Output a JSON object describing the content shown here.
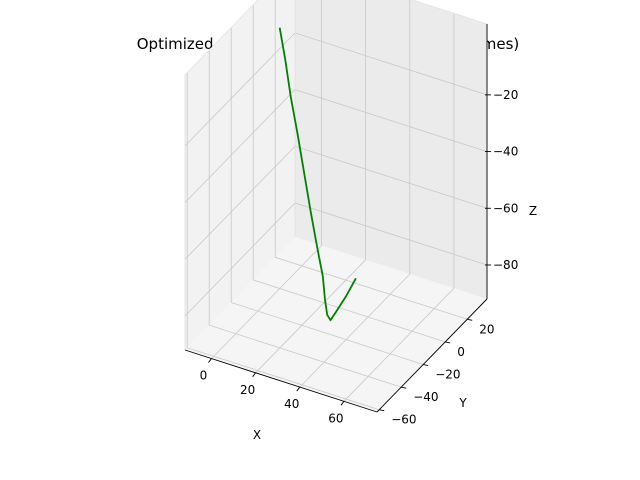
{
  "chart_data": {
    "type": "line",
    "projection": "3d",
    "title": "Optimized Smoothed Trajectory (Visual Keyframes)",
    "xlabel": "X",
    "ylabel": "Y",
    "zlabel": "Z",
    "xlim": [
      -12,
      75
    ],
    "ylim": [
      -62,
      38
    ],
    "zlim": [
      -92,
      5
    ],
    "xticks": [
      0,
      20,
      40,
      60
    ],
    "yticks": [
      -60,
      -40,
      -20,
      0,
      20
    ],
    "zticks": [
      -80,
      -60,
      -40,
      -20
    ],
    "xtick_labels": [
      "0",
      "20",
      "40",
      "60"
    ],
    "ytick_labels": [
      "−60",
      "−40",
      "−20",
      "0",
      "20"
    ],
    "ztick_labels": [
      "−80",
      "−60",
      "−40",
      "−20"
    ],
    "grid": true,
    "series": [
      {
        "color": "#008000",
        "points": [
          {
            "x": 0,
            "y": 0,
            "z": 0
          },
          {
            "x": 3,
            "y": -1,
            "z": -10
          },
          {
            "x": 6,
            "y": -2,
            "z": -22
          },
          {
            "x": 10,
            "y": -4,
            "z": -33
          },
          {
            "x": 14,
            "y": -6,
            "z": -45
          },
          {
            "x": 18,
            "y": -8,
            "z": -57
          },
          {
            "x": 22,
            "y": -10,
            "z": -68
          },
          {
            "x": 25,
            "y": -11,
            "z": -77
          },
          {
            "x": 27,
            "y": -13,
            "z": -84
          },
          {
            "x": 29,
            "y": -15,
            "z": -88
          },
          {
            "x": 31,
            "y": -16,
            "z": -89
          },
          {
            "x": 33,
            "y": -15,
            "z": -86
          },
          {
            "x": 36,
            "y": -12,
            "z": -81
          },
          {
            "x": 39,
            "y": -9,
            "z": -75
          }
        ]
      }
    ]
  }
}
